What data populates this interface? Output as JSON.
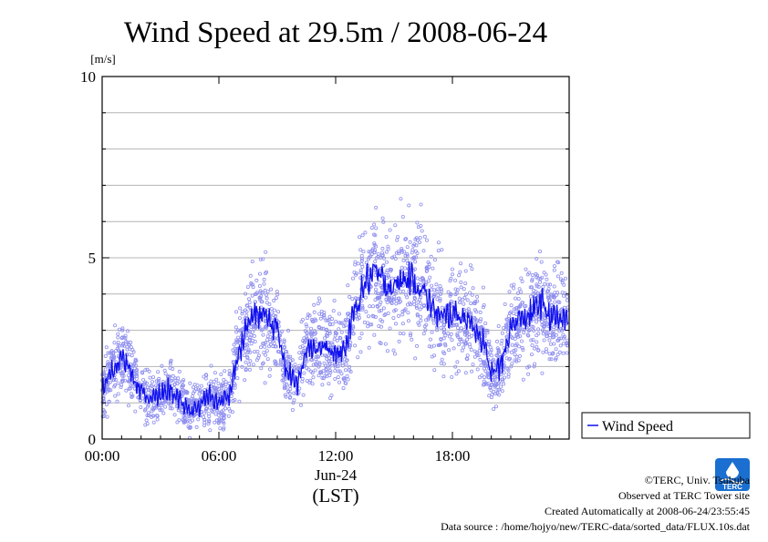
{
  "chart_data": {
    "type": "scatter",
    "title": "Wind Speed at 29.5m / 2008-06-24",
    "ylabel": "[m/s]",
    "xlabel": "(LST)",
    "date_label": "Jun-24",
    "xlim": [
      0,
      24
    ],
    "ylim": [
      0,
      10
    ],
    "x_units": "hours (LST)",
    "y_ticks": [
      0,
      5,
      10
    ],
    "y_tick_labels": [
      "0",
      "5",
      "10"
    ],
    "y_gridlines": [
      1,
      2,
      3,
      4,
      5,
      6,
      7,
      8,
      9
    ],
    "x_ticks": [
      0,
      6,
      12,
      18
    ],
    "x_tick_labels": [
      "00:00",
      "06:00",
      "12:00",
      "18:00"
    ],
    "grid": true,
    "legend": {
      "position": "right",
      "entries": [
        "Wind Speed"
      ]
    },
    "series": [
      {
        "name": "Wind Speed",
        "style": "line (10-min mean) with scatter of 10-s samples",
        "line_color": "#1010ee",
        "point_color": "#8f8fef",
        "x": [
          0.0,
          0.5,
          1.0,
          1.5,
          2.0,
          2.5,
          3.0,
          3.5,
          4.0,
          4.5,
          5.0,
          5.5,
          6.0,
          6.5,
          7.0,
          7.5,
          8.0,
          8.5,
          9.0,
          9.5,
          10.0,
          10.5,
          11.0,
          11.5,
          12.0,
          12.5,
          13.0,
          13.5,
          14.0,
          14.5,
          15.0,
          15.5,
          16.0,
          16.5,
          17.0,
          17.5,
          18.0,
          18.5,
          19.0,
          19.5,
          20.0,
          20.5,
          21.0,
          21.5,
          22.0,
          22.5,
          23.0,
          23.5
        ],
        "y": [
          1.4,
          1.8,
          2.3,
          1.9,
          1.3,
          1.1,
          1.2,
          1.4,
          1.0,
          0.8,
          0.9,
          1.2,
          1.0,
          1.2,
          2.3,
          3.2,
          3.5,
          3.3,
          3.0,
          1.9,
          1.5,
          2.6,
          2.5,
          2.5,
          2.3,
          2.5,
          3.6,
          4.3,
          4.6,
          4.3,
          4.2,
          4.4,
          4.4,
          4.1,
          3.6,
          3.3,
          3.5,
          3.4,
          3.2,
          2.8,
          1.8,
          2.0,
          3.1,
          3.3,
          3.4,
          3.8,
          3.4,
          3.3
        ]
      }
    ]
  },
  "credits": {
    "copyright": "©TERC, Univ. Tsukuba",
    "site": "Observed at TERC Tower site",
    "created": "Created Automatically at 2008-06-24/23:55:45",
    "source": "Data source : /home/hojyo/new/TERC-data/sorted_data/FLUX.10s.dat",
    "logo_text": "TERC"
  },
  "colors": {
    "line": "#1010ee",
    "points": "#8f8fef",
    "grid": "#b4b4b4",
    "logo": "#1a6fd0"
  }
}
